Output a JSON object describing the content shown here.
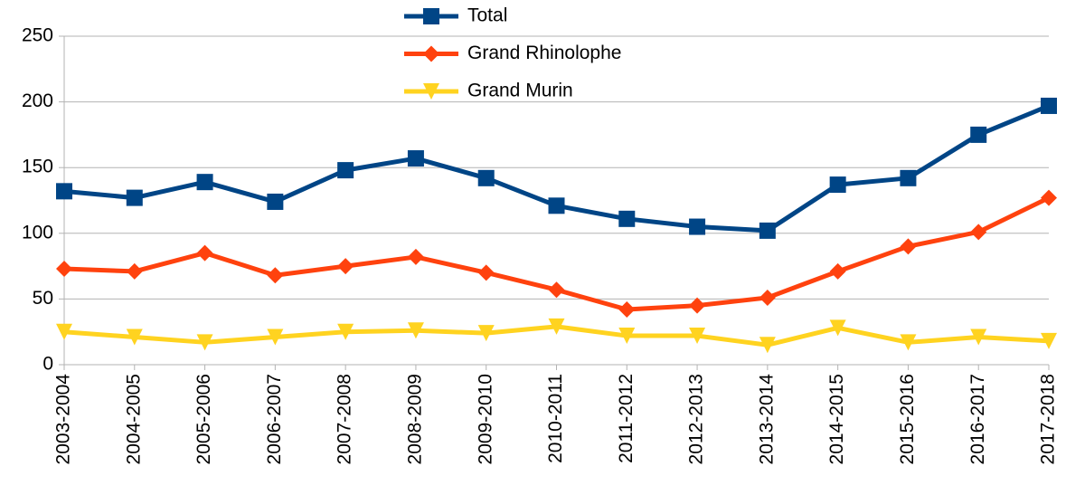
{
  "chart_data": {
    "type": "line",
    "categories": [
      "2003-2004",
      "2004-2005",
      "2005-2006",
      "2006-2007",
      "2007-2008",
      "2008-2009",
      "2009-2010",
      "2010-2011",
      "2011-2012",
      "2012-2013",
      "2013-2014",
      "2014-2015",
      "2015-2016",
      "2016-2017",
      "2017-2018"
    ],
    "series": [
      {
        "name": "Total",
        "color": "#004586",
        "marker": "square",
        "values": [
          132,
          127,
          139,
          124,
          148,
          157,
          142,
          121,
          111,
          105,
          102,
          137,
          142,
          175,
          197
        ]
      },
      {
        "name": "Grand Rhinolophe",
        "color": "#ff420e",
        "marker": "diamond",
        "values": [
          73,
          71,
          85,
          68,
          75,
          82,
          70,
          57,
          42,
          45,
          51,
          71,
          90,
          101,
          127
        ]
      },
      {
        "name": "Grand Murin",
        "color": "#ffd320",
        "marker": "triangle-down",
        "values": [
          25,
          21,
          17,
          21,
          25,
          26,
          24,
          29,
          22,
          22,
          15,
          28,
          17,
          21,
          18
        ]
      }
    ],
    "ylim": [
      0,
      250
    ],
    "yticks": [
      0,
      50,
      100,
      150,
      200,
      250
    ],
    "grid": true,
    "legend": "top"
  }
}
